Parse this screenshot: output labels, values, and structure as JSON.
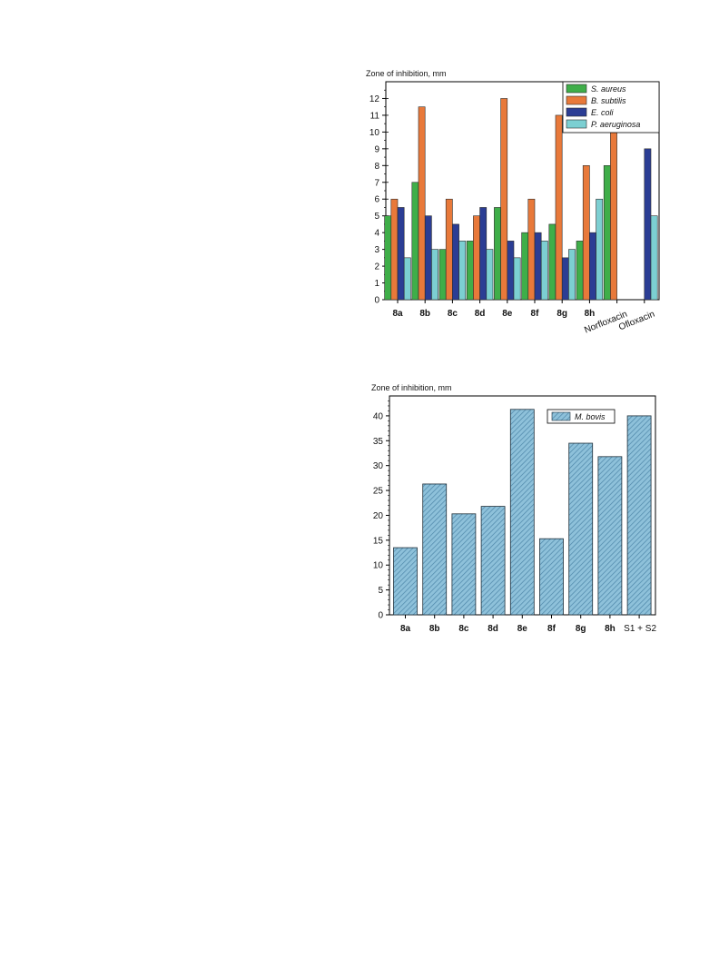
{
  "chart_data": [
    {
      "type": "bar",
      "ylabel": "Zone of inhibition, mm",
      "categories": [
        "8a",
        "8b",
        "8c",
        "8d",
        "8e",
        "8f",
        "8g",
        "8h",
        "Norfloxacin",
        "Ofloxacin"
      ],
      "yticks": [
        "0",
        "1",
        "2",
        "3",
        "4",
        "5",
        "6",
        "7",
        "8",
        "9",
        "10",
        "11",
        "12"
      ],
      "ylim": [
        0,
        13
      ],
      "grid": false,
      "legend_position": "top-right",
      "series": [
        {
          "name": "S. aureus",
          "color": "#3fae49",
          "values": [
            5,
            7,
            3,
            3.5,
            5.5,
            4,
            4.5,
            3.5,
            8,
            0
          ]
        },
        {
          "name": "B. subtilis",
          "color": "#e8793a",
          "values": [
            6,
            11.5,
            6,
            5,
            12,
            6,
            11,
            8,
            10,
            0
          ]
        },
        {
          "name": "E. coli",
          "color": "#2b3d94",
          "values": [
            5.5,
            5,
            4.5,
            5.5,
            3.5,
            4,
            2.5,
            4,
            0,
            9
          ]
        },
        {
          "name": "P. aeruginosa",
          "color": "#7ccfd2",
          "values": [
            2.5,
            3,
            3.5,
            3,
            2.5,
            3.5,
            3,
            6,
            0,
            5
          ]
        }
      ]
    },
    {
      "type": "bar",
      "ylabel": "Zone of inhibition, mm",
      "categories": [
        "8a",
        "8b",
        "8c",
        "8d",
        "8e",
        "8f",
        "8g",
        "8h",
        "S1 + S2"
      ],
      "yticks": [
        "0",
        "5",
        "10",
        "15",
        "20",
        "25",
        "30",
        "35",
        "40"
      ],
      "ylim": [
        0,
        44
      ],
      "grid": false,
      "legend_position": "top-center",
      "series": [
        {
          "name": "M. bovis",
          "color": "#7fb3cf",
          "values": [
            13.5,
            26.3,
            20.3,
            21.8,
            41.3,
            15.3,
            34.5,
            31.8,
            40
          ]
        }
      ]
    }
  ]
}
